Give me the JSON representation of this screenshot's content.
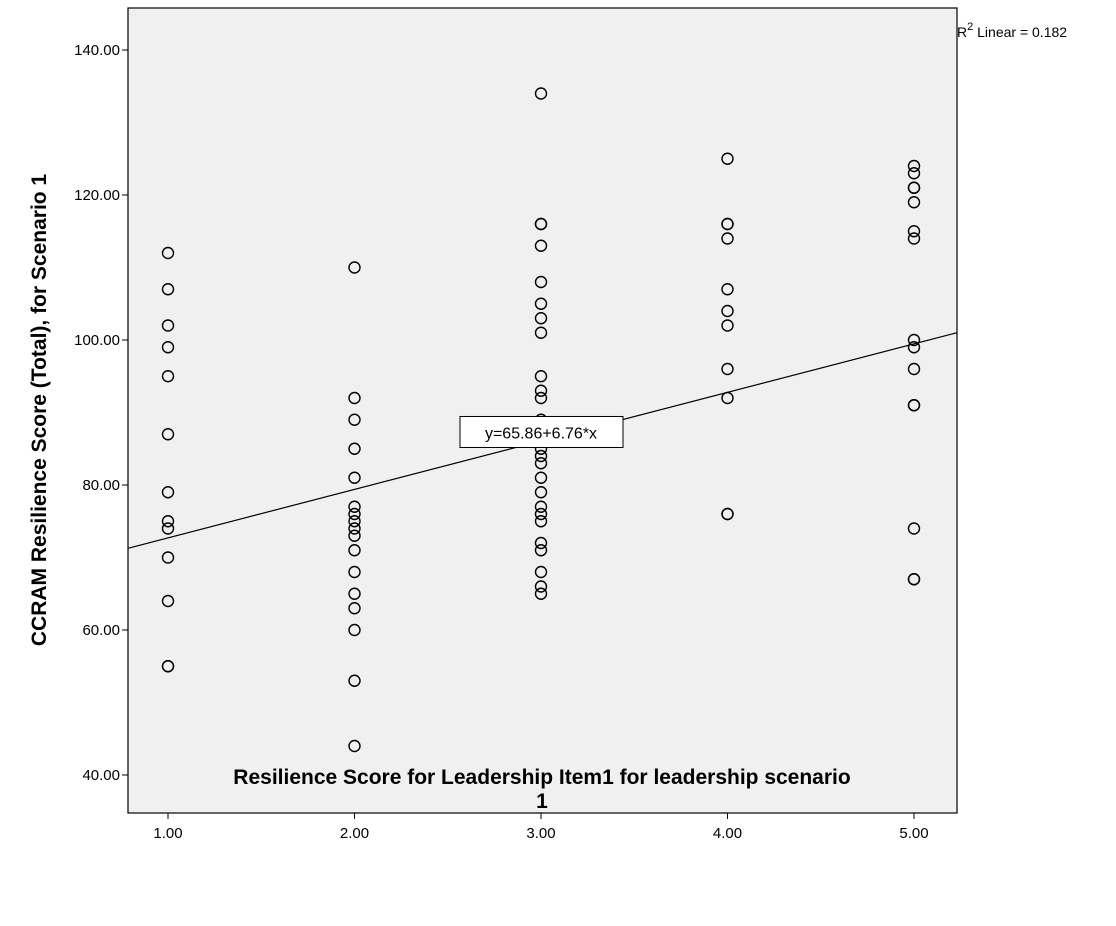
{
  "chart_data": {
    "type": "scatter",
    "xlabel_line1": "Resilience Score for Leadership Item1  for leadership scenario",
    "xlabel_line2": "1",
    "ylabel": "CCRAM Resilience Score (Total), for Scenario 1",
    "xlim": [
      0.8,
      5.2
    ],
    "ylim": [
      35,
      142
    ],
    "x_ticks": [
      1,
      2,
      3,
      4,
      5
    ],
    "x_tick_labels": [
      "1.00",
      "2.00",
      "3.00",
      "4.00",
      "5.00"
    ],
    "y_ticks": [
      40,
      60,
      80,
      100,
      120,
      140
    ],
    "y_tick_labels": [
      "40.00",
      "60.00",
      "80.00",
      "100.00",
      "120.00",
      "140.00"
    ],
    "grid": false,
    "fit_line": {
      "intercept": 65.86,
      "slope": 6.76,
      "label": "y=65.86+6.76*x"
    },
    "r2_label": {
      "prefix": "R",
      "sup": "2",
      "text": " Linear = 0.182"
    },
    "points": [
      {
        "x": 1,
        "y": 112
      },
      {
        "x": 1,
        "y": 107
      },
      {
        "x": 1,
        "y": 102
      },
      {
        "x": 1,
        "y": 99
      },
      {
        "x": 1,
        "y": 95
      },
      {
        "x": 1,
        "y": 87
      },
      {
        "x": 1,
        "y": 79
      },
      {
        "x": 1,
        "y": 75
      },
      {
        "x": 1,
        "y": 74
      },
      {
        "x": 1,
        "y": 70
      },
      {
        "x": 1,
        "y": 64
      },
      {
        "x": 1,
        "y": 55
      },
      {
        "x": 1,
        "y": 55
      },
      {
        "x": 2,
        "y": 110
      },
      {
        "x": 2,
        "y": 92
      },
      {
        "x": 2,
        "y": 89
      },
      {
        "x": 2,
        "y": 85
      },
      {
        "x": 2,
        "y": 81
      },
      {
        "x": 2,
        "y": 77
      },
      {
        "x": 2,
        "y": 76
      },
      {
        "x": 2,
        "y": 75
      },
      {
        "x": 2,
        "y": 74
      },
      {
        "x": 2,
        "y": 73
      },
      {
        "x": 2,
        "y": 71
      },
      {
        "x": 2,
        "y": 68
      },
      {
        "x": 2,
        "y": 65
      },
      {
        "x": 2,
        "y": 63
      },
      {
        "x": 2,
        "y": 60
      },
      {
        "x": 2,
        "y": 53
      },
      {
        "x": 2,
        "y": 44
      },
      {
        "x": 3,
        "y": 134
      },
      {
        "x": 3,
        "y": 116
      },
      {
        "x": 3,
        "y": 116
      },
      {
        "x": 3,
        "y": 113
      },
      {
        "x": 3,
        "y": 108
      },
      {
        "x": 3,
        "y": 105
      },
      {
        "x": 3,
        "y": 103
      },
      {
        "x": 3,
        "y": 101
      },
      {
        "x": 3,
        "y": 95
      },
      {
        "x": 3,
        "y": 93
      },
      {
        "x": 3,
        "y": 92
      },
      {
        "x": 3,
        "y": 89
      },
      {
        "x": 3,
        "y": 87
      },
      {
        "x": 3,
        "y": 85
      },
      {
        "x": 3,
        "y": 84
      },
      {
        "x": 3,
        "y": 83
      },
      {
        "x": 3,
        "y": 81
      },
      {
        "x": 3,
        "y": 79
      },
      {
        "x": 3,
        "y": 77
      },
      {
        "x": 3,
        "y": 76
      },
      {
        "x": 3,
        "y": 75
      },
      {
        "x": 3,
        "y": 72
      },
      {
        "x": 3,
        "y": 71
      },
      {
        "x": 3,
        "y": 68
      },
      {
        "x": 3,
        "y": 66
      },
      {
        "x": 3,
        "y": 65
      },
      {
        "x": 4,
        "y": 125
      },
      {
        "x": 4,
        "y": 116
      },
      {
        "x": 4,
        "y": 116
      },
      {
        "x": 4,
        "y": 114
      },
      {
        "x": 4,
        "y": 107
      },
      {
        "x": 4,
        "y": 104
      },
      {
        "x": 4,
        "y": 102
      },
      {
        "x": 4,
        "y": 96
      },
      {
        "x": 4,
        "y": 92
      },
      {
        "x": 4,
        "y": 76
      },
      {
        "x": 4,
        "y": 76
      },
      {
        "x": 5,
        "y": 124
      },
      {
        "x": 5,
        "y": 123
      },
      {
        "x": 5,
        "y": 121
      },
      {
        "x": 5,
        "y": 121
      },
      {
        "x": 5,
        "y": 119
      },
      {
        "x": 5,
        "y": 115
      },
      {
        "x": 5,
        "y": 114
      },
      {
        "x": 5,
        "y": 100
      },
      {
        "x": 5,
        "y": 99
      },
      {
        "x": 5,
        "y": 96
      },
      {
        "x": 5,
        "y": 91
      },
      {
        "x": 5,
        "y": 91
      },
      {
        "x": 5,
        "y": 74
      },
      {
        "x": 5,
        "y": 67
      },
      {
        "x": 5,
        "y": 67
      }
    ],
    "colors": {
      "plot_background": "#f0f0f0",
      "marker_stroke": "#000000",
      "line": "#000000"
    }
  }
}
